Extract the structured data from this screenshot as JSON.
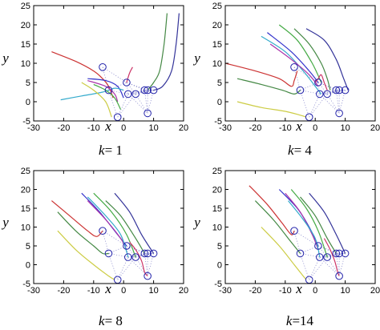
{
  "chart_data": [
    {
      "type": "line",
      "title": "",
      "caption_var": "k",
      "caption_value": "= 1",
      "xlabel": "x",
      "ylabel": "y",
      "xlim": [
        -30,
        20
      ],
      "ylim": [
        -5,
        25
      ],
      "xticks": [
        -30,
        -20,
        -10,
        0,
        10,
        20
      ],
      "yticks": [
        -5,
        0,
        5,
        10,
        15,
        20,
        25
      ],
      "series": [
        {
          "color": "#cc3333",
          "points": [
            [
              -24,
              13
            ],
            [
              -16,
              10.5
            ],
            [
              -10,
              8
            ],
            [
              -7,
              6
            ],
            [
              -5,
              4
            ],
            [
              -3.5,
              1
            ]
          ]
        },
        {
          "color": "#3333cc",
          "points": [
            [
              -12,
              6
            ],
            [
              -6,
              5.5
            ],
            [
              -2,
              4
            ],
            [
              0,
              1
            ]
          ]
        },
        {
          "color": "#33aacc",
          "points": [
            [
              -21,
              0.5
            ],
            [
              -14,
              1.5
            ],
            [
              -7,
              2.5
            ],
            [
              -3,
              3.5
            ],
            [
              0,
              3
            ]
          ]
        },
        {
          "color": "#aa33aa",
          "points": [
            [
              -12,
              5.5
            ],
            [
              -6,
              4
            ],
            [
              -3,
              2
            ],
            [
              -2,
              0
            ]
          ]
        },
        {
          "color": "#44aa44",
          "points": [
            [
              -10,
              4.5
            ],
            [
              -6,
              3
            ],
            [
              -3,
              1
            ],
            [
              -1,
              -2
            ]
          ]
        },
        {
          "color": "#cccc44",
          "points": [
            [
              -14,
              5
            ],
            [
              -10,
              3
            ],
            [
              -6,
              0
            ],
            [
              -4,
              -4
            ]
          ]
        },
        {
          "color": "#448844",
          "points": [
            [
              8,
              3
            ],
            [
              10,
              5
            ],
            [
              12,
              8
            ],
            [
              13.5,
              15
            ],
            [
              14.5,
              23
            ]
          ]
        },
        {
          "color": "#333399",
          "points": [
            [
              10,
              3
            ],
            [
              13,
              4
            ],
            [
              16,
              8
            ],
            [
              17.5,
              15
            ],
            [
              18.5,
              23
            ]
          ]
        },
        {
          "color": "#cc3366",
          "points": [
            [
              1,
              5
            ],
            [
              2,
              7.5
            ],
            [
              3,
              9
            ]
          ]
        }
      ],
      "circles": [
        [
          -7,
          9
        ],
        [
          -5,
          3
        ],
        [
          -2,
          -4
        ],
        [
          1,
          5
        ],
        [
          1.5,
          2
        ],
        [
          4,
          2
        ],
        [
          7,
          3
        ],
        [
          8,
          3
        ],
        [
          10,
          3
        ],
        [
          8,
          -3
        ]
      ]
    },
    {
      "type": "line",
      "title": "",
      "caption_var": "k",
      "caption_value": "= 4",
      "xlabel": "x",
      "ylabel": "y",
      "xlim": [
        -30,
        20
      ],
      "ylim": [
        -5,
        25
      ],
      "xticks": [
        -30,
        -20,
        -10,
        0,
        10,
        20
      ],
      "yticks": [
        -5,
        0,
        5,
        10,
        15,
        20,
        25
      ],
      "series": [
        {
          "color": "#cc3333",
          "points": [
            [
              -30,
              10
            ],
            [
              -20,
              8
            ],
            [
              -12,
              6
            ],
            [
              -8,
              4
            ],
            [
              -7,
              5.5
            ],
            [
              -6,
              8
            ]
          ]
        },
        {
          "color": "#448844",
          "points": [
            [
              -26,
              6
            ],
            [
              -18,
              4.5
            ],
            [
              -11,
              3
            ],
            [
              -7,
              2
            ],
            [
              -5,
              3
            ]
          ]
        },
        {
          "color": "#cccc44",
          "points": [
            [
              -26,
              0
            ],
            [
              -18,
              -1.5
            ],
            [
              -10,
              -2.5
            ],
            [
              -5,
              -3.5
            ],
            [
              -3,
              -4
            ]
          ]
        },
        {
          "color": "#33aacc",
          "points": [
            [
              -18,
              17
            ],
            [
              -10,
              13
            ],
            [
              -4,
              8
            ],
            [
              0,
              4
            ],
            [
              2,
              2
            ]
          ]
        },
        {
          "color": "#3333cc",
          "points": [
            [
              -16,
              18
            ],
            [
              -8,
              13
            ],
            [
              -2,
              8
            ],
            [
              1,
              5
            ]
          ]
        },
        {
          "color": "#aa33aa",
          "points": [
            [
              -15,
              15
            ],
            [
              -8,
              11
            ],
            [
              -2,
              7
            ],
            [
              1,
              4
            ]
          ]
        },
        {
          "color": "#44aa44",
          "points": [
            [
              -12,
              20
            ],
            [
              -6,
              16
            ],
            [
              -1,
              10
            ],
            [
              2,
              5
            ]
          ]
        },
        {
          "color": "#448844",
          "points": [
            [
              -7,
              19
            ],
            [
              -2,
              15
            ],
            [
              2,
              10
            ],
            [
              4,
              6
            ],
            [
              5,
              3
            ]
          ]
        },
        {
          "color": "#333399",
          "points": [
            [
              -3,
              19
            ],
            [
              3,
              16
            ],
            [
              7,
              11
            ],
            [
              9.5,
              6
            ],
            [
              11,
              3
            ]
          ]
        },
        {
          "color": "#cc3366",
          "points": [
            [
              0,
              5
            ],
            [
              1,
              6
            ],
            [
              2,
              7
            ],
            [
              3,
              5
            ],
            [
              4,
              3
            ]
          ]
        }
      ],
      "circles": [
        [
          -7,
          9
        ],
        [
          -5,
          3
        ],
        [
          -2,
          -4
        ],
        [
          1,
          5
        ],
        [
          1.5,
          2
        ],
        [
          4,
          2
        ],
        [
          7,
          3
        ],
        [
          8,
          3
        ],
        [
          10,
          3
        ],
        [
          8,
          -3
        ]
      ]
    },
    {
      "type": "line",
      "title": "",
      "caption_var": "k",
      "caption_value": "= 8",
      "xlabel": "x",
      "ylabel": "y",
      "xlim": [
        -30,
        20
      ],
      "ylim": [
        -5,
        25
      ],
      "xticks": [
        -30,
        -20,
        -10,
        0,
        10,
        20
      ],
      "yticks": [
        -5,
        0,
        5,
        10,
        15,
        20,
        25
      ],
      "series": [
        {
          "color": "#cc3333",
          "points": [
            [
              -24,
              17
            ],
            [
              -18,
              13
            ],
            [
              -12,
              9
            ],
            [
              -9,
              7.5
            ],
            [
              -7,
              9
            ]
          ]
        },
        {
          "color": "#448844",
          "points": [
            [
              -22,
              14
            ],
            [
              -16,
              9
            ],
            [
              -10,
              5
            ],
            [
              -7,
              3
            ],
            [
              -5,
              3
            ]
          ]
        },
        {
          "color": "#cccc44",
          "points": [
            [
              -22,
              9
            ],
            [
              -16,
              4
            ],
            [
              -10,
              0
            ],
            [
              -5,
              -3
            ],
            [
              -3,
              -4
            ]
          ]
        },
        {
          "color": "#3333cc",
          "points": [
            [
              -14,
              19
            ],
            [
              -8,
              14
            ],
            [
              -2,
              8
            ],
            [
              1,
              5
            ]
          ]
        },
        {
          "color": "#aa33aa",
          "points": [
            [
              -12,
              17
            ],
            [
              -6,
              12
            ],
            [
              -1,
              7
            ],
            [
              1,
              4
            ]
          ]
        },
        {
          "color": "#33aacc",
          "points": [
            [
              -12,
              18
            ],
            [
              -6,
              13
            ],
            [
              -1,
              8
            ],
            [
              1.5,
              2
            ]
          ]
        },
        {
          "color": "#44aa44",
          "points": [
            [
              -10,
              19
            ],
            [
              -4,
              14
            ],
            [
              1,
              8
            ],
            [
              4,
              2
            ]
          ]
        },
        {
          "color": "#448844",
          "points": [
            [
              -6,
              17
            ],
            [
              -1,
              13
            ],
            [
              4,
              7
            ],
            [
              7,
              3
            ]
          ]
        },
        {
          "color": "#333399",
          "points": [
            [
              -3,
              19
            ],
            [
              2,
              14
            ],
            [
              6,
              8
            ],
            [
              10,
              3
            ]
          ]
        },
        {
          "color": "#cc3366",
          "points": [
            [
              2,
              6
            ],
            [
              4,
              4
            ],
            [
              6,
              1
            ],
            [
              7,
              -2
            ],
            [
              8,
              -3
            ]
          ]
        }
      ],
      "circles": [
        [
          -7,
          9
        ],
        [
          -5,
          3
        ],
        [
          -2,
          -4
        ],
        [
          1,
          5
        ],
        [
          1.5,
          2
        ],
        [
          4,
          2
        ],
        [
          7,
          3
        ],
        [
          8,
          3
        ],
        [
          10,
          3
        ],
        [
          8,
          -3
        ]
      ]
    },
    {
      "type": "line",
      "title": "",
      "caption_var": "k",
      "caption_value": "=14",
      "xlabel": "x",
      "ylabel": "y",
      "xlim": [
        -30,
        20
      ],
      "ylim": [
        -5,
        25
      ],
      "xticks": [
        -30,
        -20,
        -10,
        0,
        10,
        20
      ],
      "yticks": [
        -5,
        0,
        5,
        10,
        15,
        20,
        25
      ],
      "series": [
        {
          "color": "#cc3333",
          "points": [
            [
              -22,
              21
            ],
            [
              -16,
              16
            ],
            [
              -11,
              11
            ],
            [
              -8,
              8
            ],
            [
              -7,
              9
            ]
          ]
        },
        {
          "color": "#448844",
          "points": [
            [
              -20,
              17
            ],
            [
              -14,
              12
            ],
            [
              -9,
              7
            ],
            [
              -6,
              4
            ],
            [
              -5,
              3
            ]
          ]
        },
        {
          "color": "#cccc44",
          "points": [
            [
              -18,
              10
            ],
            [
              -12,
              5
            ],
            [
              -7,
              0
            ],
            [
              -4,
              -3
            ],
            [
              -3,
              -4
            ]
          ]
        },
        {
          "color": "#3333cc",
          "points": [
            [
              -12,
              20
            ],
            [
              -6,
              15
            ],
            [
              -2,
              10
            ],
            [
              1,
              5
            ]
          ]
        },
        {
          "color": "#aa33aa",
          "points": [
            [
              -10,
              19
            ],
            [
              -5,
              14
            ],
            [
              -1,
              8
            ],
            [
              1,
              4
            ]
          ]
        },
        {
          "color": "#33aacc",
          "points": [
            [
              -9,
              17
            ],
            [
              -4,
              12
            ],
            [
              0,
              7
            ],
            [
              1.5,
              2
            ]
          ]
        },
        {
          "color": "#44aa44",
          "points": [
            [
              -8,
              20
            ],
            [
              -3,
              15
            ],
            [
              1,
              9
            ],
            [
              4,
              2
            ]
          ]
        },
        {
          "color": "#448844",
          "points": [
            [
              -5,
              18
            ],
            [
              0,
              13
            ],
            [
              4,
              7
            ],
            [
              7,
              3
            ]
          ]
        },
        {
          "color": "#333399",
          "points": [
            [
              -2,
              19
            ],
            [
              3,
              14
            ],
            [
              7,
              8
            ],
            [
              10,
              3
            ]
          ]
        },
        {
          "color": "#cc3366",
          "points": [
            [
              3,
              7
            ],
            [
              5,
              4
            ],
            [
              6.5,
              1
            ],
            [
              7.5,
              -2
            ],
            [
              8,
              -3
            ]
          ]
        }
      ],
      "circles": [
        [
          -7,
          9
        ],
        [
          -5,
          3
        ],
        [
          -2,
          -4
        ],
        [
          1,
          5
        ],
        [
          1.5,
          2
        ],
        [
          4,
          2
        ],
        [
          7,
          3
        ],
        [
          8,
          3
        ],
        [
          10,
          3
        ],
        [
          8,
          -3
        ]
      ]
    }
  ]
}
